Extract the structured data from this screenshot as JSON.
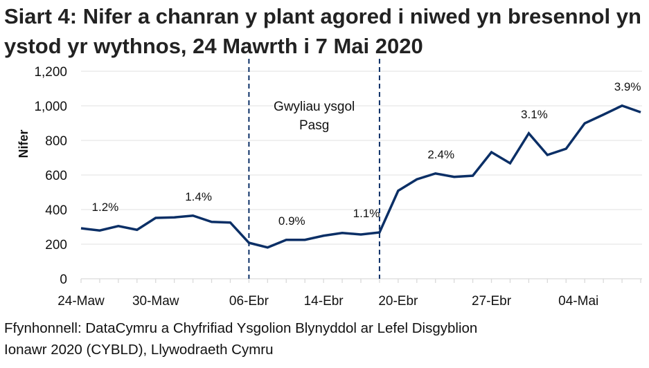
{
  "chart_data": {
    "type": "line",
    "title": "Siart 4: Nifer a chanran y plant agored i niwed yn bresennol yn ystod yr wythnos, 24 Mawrth i 7 Mai 2020",
    "xlabel": "",
    "ylabel": "Nifer",
    "ylim": [
      0,
      1200
    ],
    "yticks": [
      0,
      200,
      400,
      600,
      800,
      1000,
      1200
    ],
    "ytick_labels": [
      "0",
      "200",
      "400",
      "600",
      "800",
      "1,000",
      "1,200"
    ],
    "grid": true,
    "x": [
      "24-Maw",
      "25-Maw",
      "26-Maw",
      "27-Maw",
      "30-Maw",
      "31-Maw",
      "01-Ebr",
      "02-Ebr",
      "03-Ebr",
      "06-Ebr",
      "07-Ebr",
      "08-Ebr",
      "09-Ebr",
      "14-Ebr",
      "15-Ebr",
      "16-Ebr",
      "17-Ebr",
      "20-Ebr",
      "21-Ebr",
      "22-Ebr",
      "23-Ebr",
      "24-Ebr",
      "27-Ebr",
      "28-Ebr",
      "29-Ebr",
      "30-Ebr",
      "01-Mai",
      "04-Mai",
      "05-Mai",
      "06-Mai",
      "07-Mai"
    ],
    "xtick_labels": [
      "24-Maw",
      "30-Maw",
      "06-Ebr",
      "14-Ebr",
      "20-Ebr",
      "27-Ebr",
      "04-Mai"
    ],
    "series": [
      {
        "values": [
          292,
          279,
          305,
          283,
          352,
          355,
          365,
          329,
          325,
          208,
          181,
          225,
          225,
          249,
          265,
          256,
          268,
          509,
          575,
          609,
          589,
          596,
          732,
          668,
          841,
          716,
          752,
          899,
          949,
          1001,
          963
        ],
        "color": "#0b2f66"
      }
    ],
    "annotations": [
      {
        "text": "1.2%",
        "x": "25-Maw"
      },
      {
        "text": "1.4%",
        "x": "01-Ebr"
      },
      {
        "text": "0.9%",
        "x": "08-Ebr"
      },
      {
        "text": "1.1%",
        "x": "16-Ebr"
      },
      {
        "text": "2.4%",
        "x": "22-Ebr"
      },
      {
        "text": "3.1%",
        "x": "29-Ebr"
      },
      {
        "text": "3.9%",
        "x": "06-Mai"
      }
    ],
    "period": {
      "start": "06-Ebr",
      "end": "17-Ebr",
      "label_line1": "Gwyliau ysgol",
      "label_line2": "Pasg"
    }
  },
  "source_line1": "Ffynhonnell: DataCymru a Chyfrifiad Ysgolion Blynyddol ar Lefel Disgyblion",
  "source_line2": "Ionawr 2020 (CYBLD), Llywodraeth Cymru"
}
